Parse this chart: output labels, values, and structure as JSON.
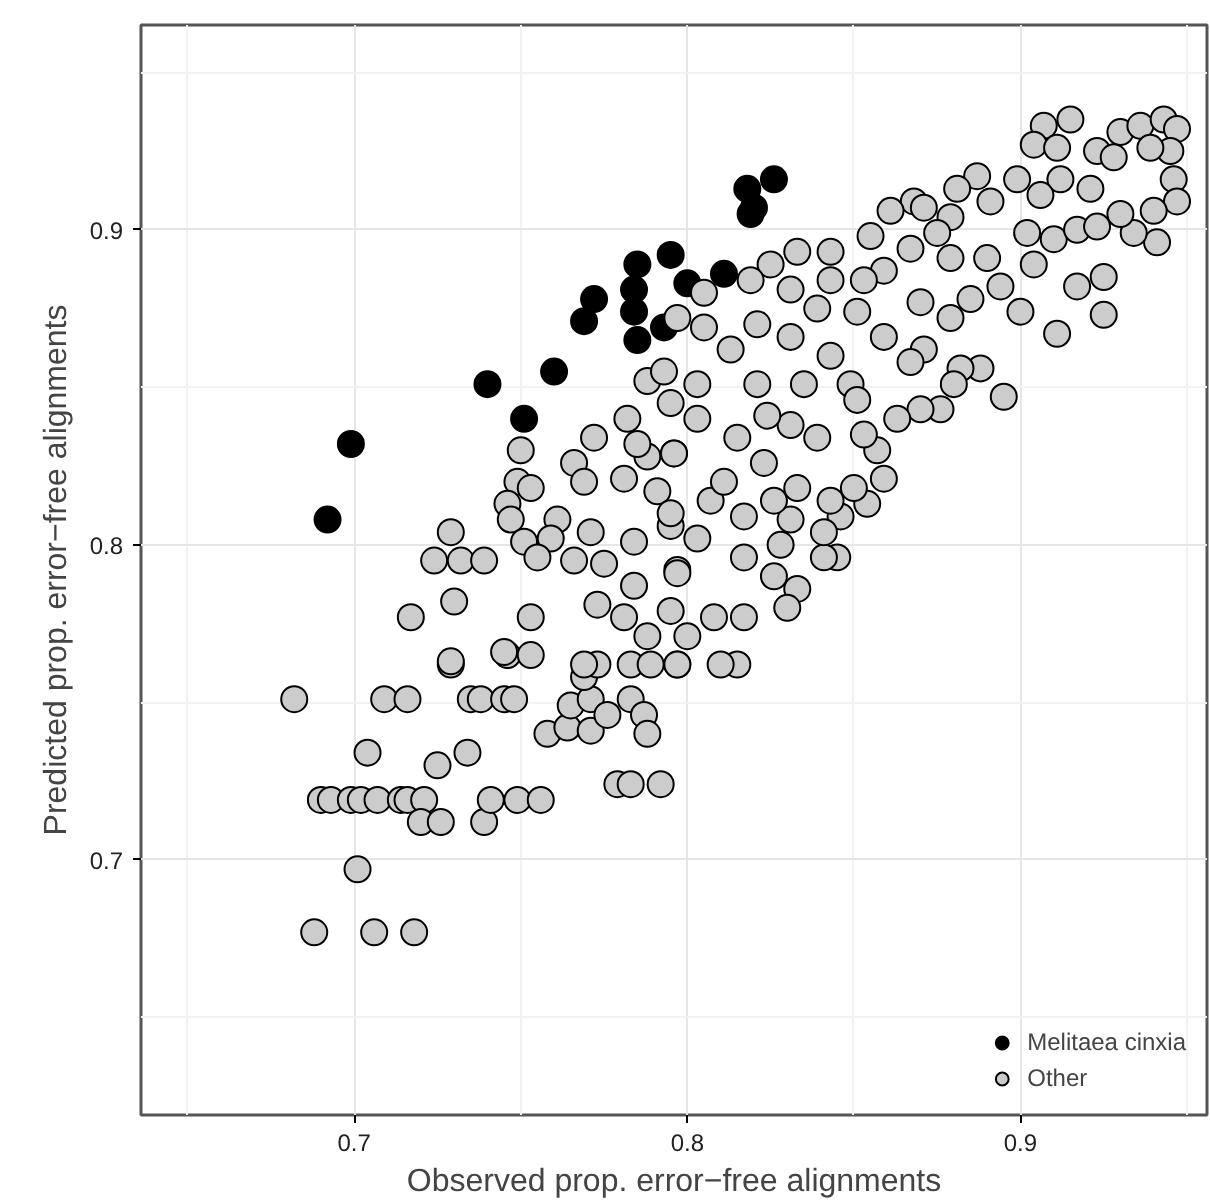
{
  "chart_data": {
    "type": "scatter",
    "xlabel": "Observed prop. error−free alignments",
    "ylabel": "Predicted prop. error−free alignments",
    "xlim": [
      0.636,
      0.956
    ],
    "ylim": [
      0.619,
      0.965
    ],
    "xticks": [
      0.7,
      0.8,
      0.9
    ],
    "yticks": [
      0.7,
      0.8,
      0.9
    ],
    "grid": true,
    "legend": "bottom right",
    "marker": "circle",
    "series": [
      {
        "name": "Melitaea cinxia",
        "color": "#000000",
        "x": [
          0.692,
          0.699,
          0.74,
          0.751,
          0.76,
          0.769,
          0.772,
          0.785,
          0.784,
          0.784,
          0.785,
          0.795,
          0.793,
          0.8,
          0.811,
          0.818,
          0.826,
          0.819,
          0.82
        ],
        "values": [
          0.808,
          0.832,
          0.851,
          0.84,
          0.855,
          0.871,
          0.878,
          0.889,
          0.881,
          0.874,
          0.865,
          0.892,
          0.869,
          0.883,
          0.886,
          0.913,
          0.916,
          0.905,
          0.907
        ]
      },
      {
        "name": "Other",
        "color": "#cccccc",
        "x": [
          0.682,
          0.709,
          0.716,
          0.729,
          0.735,
          0.738,
          0.745,
          0.748,
          0.746,
          0.753,
          0.704,
          0.725,
          0.734,
          0.69,
          0.693,
          0.699,
          0.702,
          0.707,
          0.714,
          0.716,
          0.721,
          0.72,
          0.726,
          0.739,
          0.741,
          0.749,
          0.756,
          0.701,
          0.688,
          0.706,
          0.718,
          0.779,
          0.783,
          0.792,
          0.758,
          0.764,
          0.771,
          0.765,
          0.771,
          0.776,
          0.783,
          0.787,
          0.788,
          0.769,
          0.773,
          0.783,
          0.789,
          0.797,
          0.729,
          0.724,
          0.732,
          0.739,
          0.73,
          0.717,
          0.753,
          0.729,
          0.745,
          0.75,
          0.749,
          0.753,
          0.746,
          0.747,
          0.761,
          0.751,
          0.759,
          0.755,
          0.771,
          0.766,
          0.766,
          0.769,
          0.772,
          0.781,
          0.782,
          0.788,
          0.793,
          0.788,
          0.796,
          0.791,
          0.795,
          0.785,
          0.797,
          0.773,
          0.781,
          0.788,
          0.795,
          0.769,
          0.784,
          0.775,
          0.784,
          0.795,
          0.797,
          0.915,
          0.907,
          0.904,
          0.911,
          0.923,
          0.93,
          0.936,
          0.943,
          0.947,
          0.945,
          0.939,
          0.928,
          0.946,
          0.947,
          0.94,
          0.941,
          0.934,
          0.93,
          0.921,
          0.912,
          0.899,
          0.906,
          0.887,
          0.881,
          0.868,
          0.861,
          0.871,
          0.879,
          0.891,
          0.855,
          0.867,
          0.875,
          0.879,
          0.89,
          0.902,
          0.91,
          0.917,
          0.923,
          0.925,
          0.917,
          0.925,
          0.911,
          0.904,
          0.894,
          0.9,
          0.888,
          0.895,
          0.882,
          0.871,
          0.879,
          0.885,
          0.87,
          0.859,
          0.851,
          0.859,
          0.853,
          0.843,
          0.843,
          0.833,
          0.825,
          0.819,
          0.831,
          0.805,
          0.839,
          0.821,
          0.805,
          0.831,
          0.843,
          0.849,
          0.867,
          0.813,
          0.803,
          0.821,
          0.835,
          0.88,
          0.876,
          0.87,
          0.859,
          0.854,
          0.85,
          0.857,
          0.845,
          0.841,
          0.846,
          0.833,
          0.83,
          0.817,
          0.815,
          0.81,
          0.797,
          0.8,
          0.808,
          0.797,
          0.826,
          0.803,
          0.817,
          0.828,
          0.841,
          0.831,
          0.817,
          0.807,
          0.795,
          0.843,
          0.826,
          0.833,
          0.811,
          0.796,
          0.823,
          0.839,
          0.853,
          0.815,
          0.831,
          0.803,
          0.863,
          0.851,
          0.824
        ],
        "values": [
          0.751,
          0.751,
          0.751,
          0.762,
          0.751,
          0.751,
          0.751,
          0.751,
          0.765,
          0.765,
          0.734,
          0.73,
          0.734,
          0.719,
          0.719,
          0.719,
          0.719,
          0.719,
          0.719,
          0.719,
          0.719,
          0.712,
          0.712,
          0.712,
          0.719,
          0.719,
          0.719,
          0.697,
          0.677,
          0.677,
          0.677,
          0.724,
          0.724,
          0.724,
          0.74,
          0.742,
          0.741,
          0.749,
          0.751,
          0.746,
          0.751,
          0.746,
          0.74,
          0.758,
          0.762,
          0.762,
          0.762,
          0.762,
          0.804,
          0.795,
          0.795,
          0.795,
          0.782,
          0.777,
          0.777,
          0.763,
          0.766,
          0.83,
          0.82,
          0.818,
          0.813,
          0.808,
          0.808,
          0.801,
          0.802,
          0.796,
          0.804,
          0.795,
          0.826,
          0.82,
          0.834,
          0.821,
          0.84,
          0.852,
          0.855,
          0.828,
          0.829,
          0.817,
          0.845,
          0.832,
          0.872,
          0.781,
          0.777,
          0.771,
          0.779,
          0.762,
          0.787,
          0.794,
          0.801,
          0.806,
          0.792,
          0.935,
          0.933,
          0.927,
          0.926,
          0.925,
          0.931,
          0.933,
          0.935,
          0.932,
          0.925,
          0.926,
          0.923,
          0.916,
          0.909,
          0.906,
          0.896,
          0.899,
          0.905,
          0.913,
          0.916,
          0.916,
          0.911,
          0.917,
          0.913,
          0.909,
          0.906,
          0.907,
          0.904,
          0.909,
          0.898,
          0.894,
          0.899,
          0.891,
          0.891,
          0.899,
          0.897,
          0.9,
          0.901,
          0.885,
          0.882,
          0.873,
          0.867,
          0.889,
          0.882,
          0.874,
          0.856,
          0.847,
          0.856,
          0.862,
          0.872,
          0.878,
          0.877,
          0.866,
          0.874,
          0.887,
          0.884,
          0.893,
          0.884,
          0.893,
          0.889,
          0.884,
          0.881,
          0.88,
          0.875,
          0.87,
          0.869,
          0.866,
          0.86,
          0.851,
          0.858,
          0.862,
          0.851,
          0.851,
          0.851,
          0.851,
          0.843,
          0.843,
          0.821,
          0.813,
          0.818,
          0.83,
          0.796,
          0.796,
          0.809,
          0.786,
          0.78,
          0.777,
          0.762,
          0.762,
          0.762,
          0.771,
          0.777,
          0.791,
          0.79,
          0.802,
          0.796,
          0.8,
          0.804,
          0.808,
          0.809,
          0.814,
          0.81,
          0.814,
          0.814,
          0.818,
          0.82,
          0.829,
          0.826,
          0.834,
          0.835,
          0.834,
          0.838,
          0.84,
          0.84,
          0.846,
          0.841
        ]
      }
    ]
  }
}
